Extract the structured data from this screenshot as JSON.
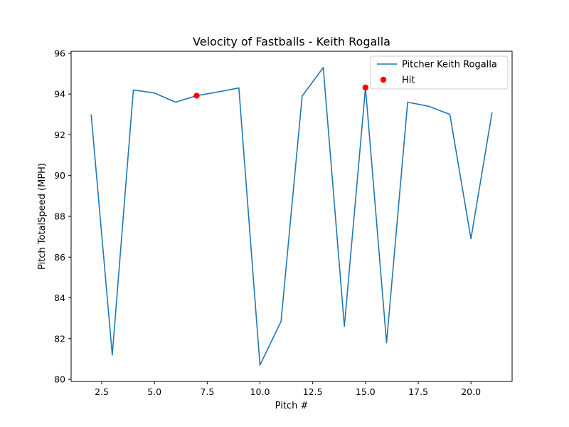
{
  "chart_data": {
    "type": "line",
    "title": "Velocity of Fastballs - Keith Rogalla",
    "xlabel": "Pitch #",
    "ylabel": "Pitch TotalSpeed (MPH)",
    "xlim": [
      1.05,
      21.95
    ],
    "ylim": [
      79.9,
      96.1
    ],
    "xticks": [
      2.5,
      5.0,
      7.5,
      10.0,
      12.5,
      15.0,
      17.5,
      20.0
    ],
    "xtick_labels": [
      "2.5",
      "5.0",
      "7.5",
      "10.0",
      "12.5",
      "15.0",
      "17.5",
      "20.0"
    ],
    "yticks": [
      80,
      82,
      84,
      86,
      88,
      90,
      92,
      94,
      96
    ],
    "ytick_labels": [
      "80",
      "82",
      "84",
      "86",
      "88",
      "90",
      "92",
      "94",
      "96"
    ],
    "grid": false,
    "legend_position": "top-right",
    "series": [
      {
        "name": "Pitcher Keith Rogalla",
        "kind": "line",
        "color": "#1f77b4",
        "x": [
          2,
          3,
          4,
          5,
          6,
          7,
          8,
          9,
          10,
          11,
          12,
          13,
          14,
          15,
          16,
          17,
          18,
          19,
          20,
          21
        ],
        "y": [
          93.0,
          81.2,
          94.2,
          94.05,
          93.6,
          93.92,
          94.1,
          94.3,
          80.7,
          82.85,
          93.9,
          95.3,
          82.6,
          94.32,
          81.8,
          93.6,
          93.4,
          93.0,
          86.9,
          93.1
        ]
      },
      {
        "name": "Hit",
        "kind": "scatter",
        "color": "#ff0000",
        "x": [
          7,
          15
        ],
        "y": [
          93.92,
          94.32
        ]
      }
    ]
  }
}
